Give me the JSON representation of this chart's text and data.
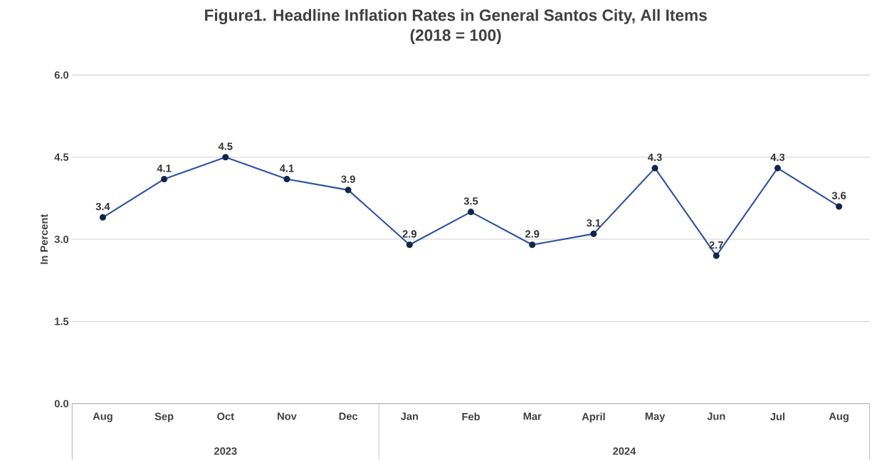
{
  "chart_data": {
    "type": "line",
    "title": "Figure1. Headline Inflation Rates in General Santos City, All Items",
    "subtitle": "(2018 = 100)",
    "ylabel": "In Percent",
    "categories": [
      "Aug",
      "Sep",
      "Oct",
      "Nov",
      "Dec",
      "Jan",
      "Feb",
      "Mar",
      "April",
      "May",
      "Jun",
      "Jul",
      "Aug"
    ],
    "series": [
      {
        "color": "#2e52a3",
        "values": [
          3.4,
          4.1,
          4.5,
          4.1,
          3.9,
          2.9,
          3.5,
          2.9,
          3.1,
          4.3,
          2.7,
          4.3,
          3.6
        ]
      }
    ],
    "ylim": [
      0,
      6
    ],
    "yticks": [
      {
        "value": 0,
        "label": "0.0"
      },
      {
        "value": 1.5,
        "label": "1.5"
      },
      {
        "value": 3,
        "label": "3.0"
      },
      {
        "value": 4.5,
        "label": "4.5"
      },
      {
        "value": 6,
        "label": "6.0"
      }
    ],
    "annotations": [
      "2023",
      "2024"
    ],
    "data_labels": true,
    "grid": "y",
    "legend": false,
    "marker": "circle",
    "line_style": "solid"
  }
}
